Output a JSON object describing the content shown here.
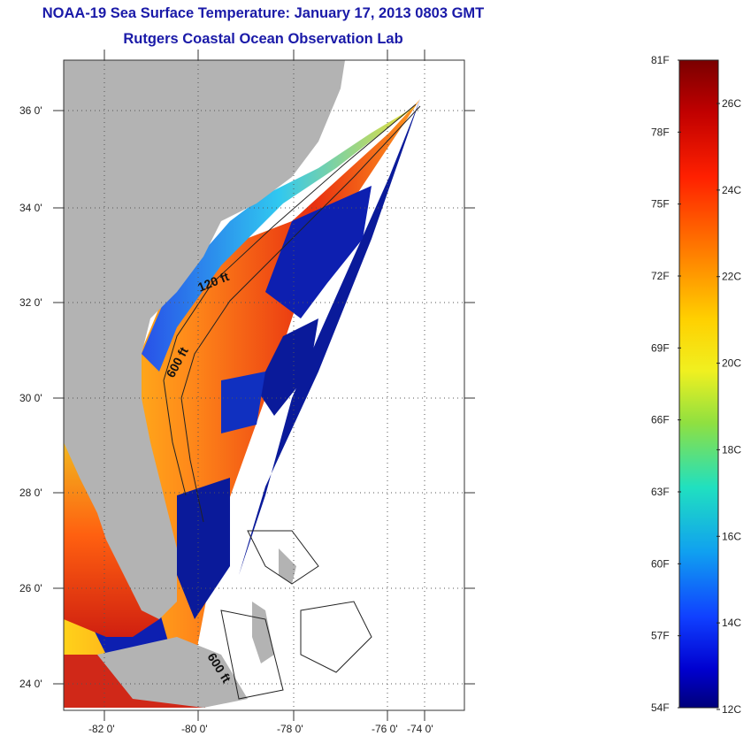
{
  "header": {
    "title": "NOAA-19 Sea Surface Temperature:  January 17, 2013 0803 GMT",
    "subtitle": "Rutgers Coastal Ocean Observation Lab"
  },
  "map": {
    "x_ticks": [
      "-82 0'",
      "-80 0'",
      "-78 0'",
      "-76 0'",
      "-74 0'"
    ],
    "y_ticks": [
      "36 0'",
      "34 0'",
      "32 0'",
      "30 0'",
      "28 0'",
      "26 0'",
      "24 0'"
    ],
    "contour_labels": [
      "120 ft",
      "600 ft",
      "600 ft"
    ],
    "colors": {
      "land": "#b3b3b3",
      "cold": "#0a1a9a",
      "warm": "#e04010",
      "grid": "#444444"
    }
  },
  "colorbar": {
    "fahrenheit_labels": [
      "81F",
      "78F",
      "75F",
      "72F",
      "69F",
      "66F",
      "63F",
      "60F",
      "57F",
      "54F"
    ],
    "celsius_labels": [
      "26C",
      "24C",
      "22C",
      "20C",
      "18C",
      "16C",
      "14C",
      "12C"
    ]
  }
}
